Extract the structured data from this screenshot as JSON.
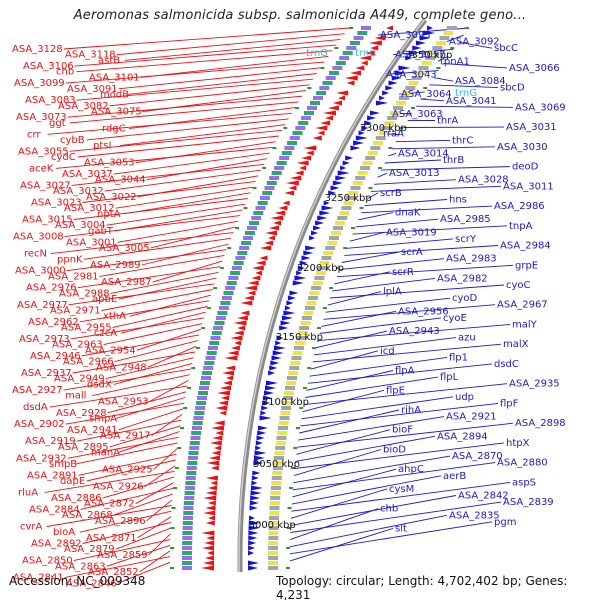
{
  "title": "Aeromonas salmonicida subsp. salmonicida A449, complete geno...",
  "footer": {
    "accession": "Accession: NC_009348",
    "summary": "Topology: circular; Length: 4,702,402 bp; Genes: 4,231"
  },
  "colors": {
    "left_labels": "#ee1111",
    "right_labels": "#1a1acc",
    "rna_labels": "#30c0e8",
    "backbone": "#8a8a8a"
  },
  "kbp_ticks": [
    "3350 kbp",
    "3300 kbp",
    "3250 kbp",
    "3200 kbp",
    "3150 kbp",
    "3100 kbp",
    "3050 kbp",
    "3000 kbp"
  ],
  "left_labels": [
    "ASA_3128",
    "ASA_3118",
    "astB",
    "ASA_3106",
    "chb",
    "ASA_3101",
    "ASA_3099",
    "ASA_3091",
    "modB",
    "ASA_3083",
    "ASA_3082",
    "ASA_3075",
    "ASA_3073",
    "ggt",
    "rdgC",
    "crr",
    "cybB",
    "ptsI",
    "ASA_3055",
    "cydC",
    "ASA_3053",
    "aceK",
    "ASA_3037",
    "ASA_3044",
    "ASA_3027",
    "ASA_3032",
    "ASA_3022",
    "ASA_3023",
    "ASA_3012",
    "nptA",
    "ASA_3015",
    "ASA_3004",
    "gabT",
    "ASA_3008",
    "ASA_3001",
    "ASA_3005",
    "recN",
    "ppnK",
    "ASA_2989",
    "ASA_3000",
    "ASA_2981",
    "ASA_2987",
    "ASA_2976",
    "ASA_2988",
    "apbE",
    "ASA_2977",
    "ASA_2971",
    "xthA",
    "ASA_2962",
    "ASA_2955",
    "czcA",
    "ASA_2973",
    "ASA_2963",
    "ASA_2954",
    "ASA_2946",
    "ASA_2966",
    "ASA_2948",
    "ASA_2937",
    "ASA_2949",
    "dsdX",
    "ASA_2927",
    "mall",
    "ASA_2953",
    "dsdA",
    "ASA_2928",
    "smpA",
    "ASA_2902",
    "ASA_2941",
    "ASA_2917",
    "ASA_2919",
    "ASA_2895",
    "manA",
    "ASA_2932",
    "smpB",
    "ASA_2925",
    "ASA_2891",
    "dapE",
    "ASA_2926",
    "rluA",
    "ASA_2886",
    "ASA_2872",
    "ASA_2884",
    "ASA_2868",
    "ASA_2896",
    "cvrA",
    "bioA",
    "ASA_2871",
    "ASA_2892",
    "ASA_2879",
    "ASA_2859",
    "ASA_2850",
    "ASA_2863",
    "ASA_2852",
    "ASA_2841",
    "ASA_2846"
  ],
  "right_labels": [
    "ASA_3093",
    "ASA_3092",
    "sbcC",
    "ASA_3057",
    "tpnA1",
    "ASA_3066",
    "ASA_3043",
    "ASA_3084",
    "sbcD",
    "ASA_3064",
    "ASA_3041",
    "ASA_3069",
    "ASA_3063",
    "thrA",
    "ASA_3031",
    "rraA",
    "thrC",
    "ASA_3030",
    "ASA_3014",
    "thrB",
    "deoD",
    "ASA_3013",
    "ASA_3028",
    "ASA_3011",
    "scrB",
    "hns",
    "ASA_2986",
    "dnaK",
    "ASA_2985",
    "tnpA",
    "ASA_3019",
    "scrY",
    "ASA_2984",
    "scrA",
    "ASA_2983",
    "grpE",
    "scrR",
    "ASA_2982",
    "cyoC",
    "lplA",
    "cyoD",
    "ASA_2967",
    "ASA_2956",
    "cyoE",
    "malY",
    "ASA_2943",
    "azu",
    "malX",
    "icd",
    "flp1",
    "dsdC",
    "flpA",
    "flpL",
    "ASA_2935",
    "flpE",
    "udp",
    "flpF",
    "rihA",
    "ASA_2921",
    "ASA_2898",
    "bioF",
    "ASA_2894",
    "htpX",
    "bioD",
    "ASA_2870",
    "ASA_2880",
    "ahpC",
    "aerB",
    "aspS",
    "cysM",
    "ASA_2842",
    "ASA_2839",
    "chb",
    "ASA_2835",
    "pgm",
    "slt"
  ],
  "rna_labels": [
    "trnG",
    "trnC",
    "trnG"
  ]
}
